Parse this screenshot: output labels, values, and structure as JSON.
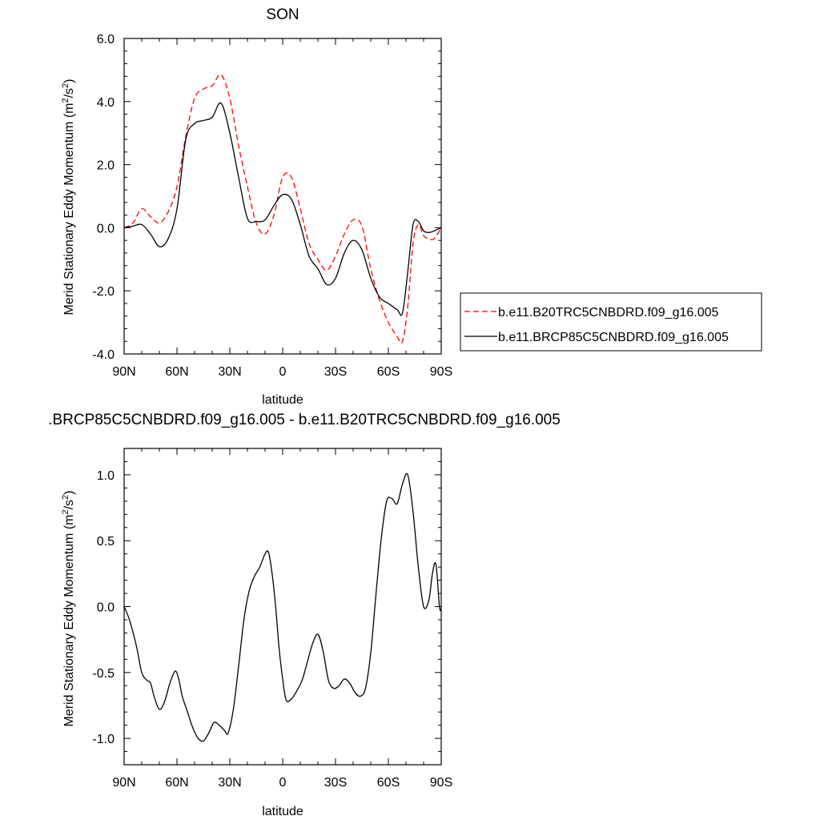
{
  "chart_data": [
    {
      "type": "line",
      "title": "SON",
      "xlabel": "latitude",
      "ylabel": "Merid Stationary Eddy Momentum (m²/s²)",
      "ylabel_base": "Merid Stationary Eddy Momentum (m",
      "ylabel_unit_mid": "/s",
      "ylabel_unit_end": ")",
      "ylabel_sup": "2",
      "xlim": [
        90,
        -90
      ],
      "ylim": [
        -4.0,
        6.0
      ],
      "xticks": [
        90,
        60,
        30,
        0,
        -30,
        -60,
        -90
      ],
      "xtick_labels": [
        "90N",
        "60N",
        "30N",
        "0",
        "30S",
        "60S",
        "90S"
      ],
      "yticks": [
        -4,
        -2,
        0,
        2,
        4,
        6
      ],
      "ytick_labels": [
        "-4.0",
        "-2.0",
        "0.0",
        "2.0",
        "4.0",
        "6.0"
      ],
      "legend_position": "right",
      "series": [
        {
          "name": "b.e11.B20TRC5CNBDRD.f09_g16.005",
          "color": "#ff0000",
          "dash": "dashed",
          "x": [
            90,
            85,
            80,
            75,
            70,
            65,
            60,
            55,
            50,
            45,
            40,
            35,
            30,
            25,
            20,
            15,
            10,
            5,
            0,
            -5,
            -10,
            -15,
            -20,
            -25,
            -30,
            -35,
            -40,
            -45,
            -50,
            -55,
            -60,
            -65,
            -68,
            -71,
            -74,
            -77,
            -80,
            -83,
            -86,
            -90
          ],
          "y": [
            0.0,
            0.15,
            0.6,
            0.35,
            0.15,
            0.5,
            1.3,
            2.9,
            4.1,
            4.4,
            4.5,
            4.85,
            4.1,
            2.6,
            1.3,
            0.15,
            -0.2,
            0.4,
            1.6,
            1.6,
            0.6,
            -0.5,
            -1.0,
            -1.35,
            -0.9,
            -0.2,
            0.25,
            0.05,
            -1.3,
            -2.3,
            -3.0,
            -3.45,
            -3.6,
            -2.5,
            -0.5,
            0.1,
            -0.25,
            -0.35,
            -0.35,
            0.0
          ]
        },
        {
          "name": "b.e11.BRCP85C5CNBDRD.f09_g16.005",
          "color": "#000000",
          "dash": "solid",
          "x": [
            90,
            85,
            80,
            75,
            70,
            65,
            60,
            55,
            50,
            45,
            40,
            35,
            30,
            25,
            20,
            15,
            10,
            5,
            0,
            -5,
            -10,
            -15,
            -20,
            -25,
            -30,
            -35,
            -40,
            -45,
            -50,
            -55,
            -60,
            -65,
            -68,
            -71,
            -74,
            -77,
            -80,
            -83,
            -86,
            -90
          ],
          "y": [
            0.0,
            0.05,
            0.1,
            -0.2,
            -0.6,
            -0.35,
            0.6,
            2.8,
            3.3,
            3.4,
            3.5,
            3.95,
            3.0,
            1.6,
            0.3,
            0.2,
            0.25,
            0.7,
            1.05,
            0.9,
            0.1,
            -0.9,
            -1.3,
            -1.8,
            -1.6,
            -0.8,
            -0.4,
            -0.7,
            -1.6,
            -2.2,
            -2.4,
            -2.6,
            -2.7,
            -1.4,
            0.1,
            0.2,
            -0.1,
            -0.15,
            -0.1,
            0.0
          ]
        }
      ]
    },
    {
      "type": "line",
      "title": ".BRCP85C5CNBDRD.f09_g16.005 - b.e11.B20TRC5CNBDRD.f09_g16.005",
      "xlabel": "latitude",
      "ylabel": "Merid Stationary Eddy Momentum (m²/s²)",
      "xlim": [
        90,
        -90
      ],
      "ylim": [
        -1.2,
        1.2
      ],
      "xticks": [
        90,
        60,
        30,
        0,
        -30,
        -60,
        -90
      ],
      "xtick_labels": [
        "90N",
        "60N",
        "30N",
        "0",
        "30S",
        "60S",
        "90S"
      ],
      "yticks": [
        -1.0,
        -0.5,
        0.0,
        0.5,
        1.0
      ],
      "ytick_labels": [
        "-1.0",
        "-0.5",
        "0.0",
        "0.5",
        "1.0"
      ],
      "series": [
        {
          "color": "#000000",
          "dash": "solid",
          "x": [
            90,
            87,
            83,
            80,
            77,
            75,
            73,
            70,
            67,
            64,
            61,
            59,
            57,
            54,
            51,
            48,
            45,
            42,
            39,
            36,
            33,
            31,
            28,
            25,
            22,
            19,
            16,
            13,
            10,
            8,
            6,
            4,
            2,
            0,
            -2,
            -5,
            -8,
            -11,
            -14,
            -17,
            -20,
            -23,
            -26,
            -29,
            -32,
            -35,
            -38,
            -41,
            -44,
            -47,
            -50,
            -53,
            -56,
            -59,
            -62,
            -65,
            -68,
            -71,
            -74,
            -77,
            -80,
            -83,
            -85,
            -87,
            -89,
            -90
          ],
          "y": [
            0.0,
            -0.1,
            -0.3,
            -0.5,
            -0.56,
            -0.58,
            -0.68,
            -0.78,
            -0.72,
            -0.58,
            -0.49,
            -0.55,
            -0.68,
            -0.8,
            -0.92,
            -1.0,
            -1.02,
            -0.96,
            -0.88,
            -0.9,
            -0.94,
            -0.96,
            -0.78,
            -0.45,
            -0.1,
            0.12,
            0.23,
            0.3,
            0.4,
            0.41,
            0.25,
            0.0,
            -0.32,
            -0.55,
            -0.71,
            -0.7,
            -0.64,
            -0.56,
            -0.42,
            -0.28,
            -0.21,
            -0.34,
            -0.56,
            -0.62,
            -0.6,
            -0.55,
            -0.58,
            -0.65,
            -0.68,
            -0.62,
            -0.35,
            0.1,
            0.52,
            0.8,
            0.82,
            0.78,
            0.93,
            1.0,
            0.72,
            0.3,
            0.0,
            0.05,
            0.25,
            0.32,
            0.0,
            -0.02
          ]
        }
      ]
    }
  ]
}
